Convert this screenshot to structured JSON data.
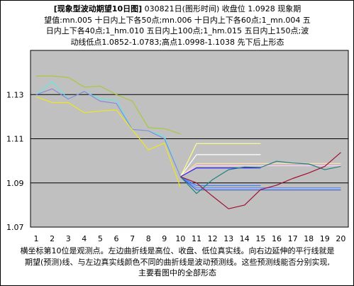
{
  "header": {
    "line1_title": "[现象型波动期望10日图]",
    "line1_rest": "030821日(图形时间) 收盘位 1.0928 现象期",
    "line2": "望值:mn.005 十日内上下各50点;mn.006 十日内上下各60点;1_mn.004 五",
    "line3": "日内上下各40点;1_hm.010 五日内上100点;1_hm.015 五日内上150点;波",
    "line4": "动线低点1.0852-1.0783;高点1.0998-1.1038 先下后上形态"
  },
  "footer": {
    "line1": "横坐标第10位是观测点。左边曲折线是高位、收盘、低位真实线。向右边延伸的平行线就是",
    "line2": "期望(预测)线、与左边真实线颜色不同的曲折线是波动预测线。这些预测线能否分别实现,",
    "line3": "主要看图中的全部形态"
  },
  "chart_data": {
    "type": "line",
    "title": "",
    "xlabel": "",
    "ylabel": "",
    "x": [
      1,
      2,
      3,
      4,
      5,
      6,
      7,
      8,
      9,
      10,
      11,
      12,
      13,
      14,
      15,
      16,
      17,
      18,
      19,
      20
    ],
    "xlim": [
      1,
      20
    ],
    "ylim": [
      1.07,
      1.15
    ],
    "yticks": [
      1.07,
      1.09,
      1.11,
      1.13
    ],
    "grid": "horizontal",
    "background": "#c0c0c0",
    "series": [
      {
        "role": "high",
        "color": "#a8c83c",
        "x": [
          1,
          2,
          3,
          4,
          5,
          6,
          7,
          8,
          9,
          10
        ],
        "y": [
          1.1384,
          1.1384,
          1.1378,
          1.1334,
          1.1338,
          1.13,
          1.127,
          1.115,
          1.1146,
          1.1122
        ]
      },
      {
        "role": "close",
        "color": "#60e8e8",
        "x": [
          1,
          2,
          3,
          4,
          5,
          6,
          7,
          8,
          9,
          10
        ],
        "y": [
          1.13,
          1.1358,
          1.128,
          1.1314,
          1.128,
          1.1276,
          1.1142,
          1.1136,
          1.111,
          1.0928
        ]
      },
      {
        "role": "close-overlay",
        "color": "#8a8ad8",
        "x": [
          1,
          2,
          3,
          4,
          5,
          6,
          7,
          8,
          9,
          10
        ],
        "y": [
          1.13,
          1.1326,
          1.128,
          1.1314,
          1.127,
          1.126,
          1.1142,
          1.1136,
          1.11,
          1.0928
        ]
      },
      {
        "role": "low",
        "color": "#ece81c",
        "x": [
          1,
          2,
          3,
          4,
          5,
          6,
          7,
          8,
          9,
          10
        ],
        "y": [
          1.129,
          1.1264,
          1.1264,
          1.1218,
          1.1226,
          1.123,
          1.114,
          1.105,
          1.108,
          1.088
        ]
      },
      {
        "role": "hm.015",
        "color": "#ffff88",
        "x": [
          10,
          11,
          15
        ],
        "y": [
          1.0928,
          1.1078,
          1.1078
        ]
      },
      {
        "role": "hm.010",
        "color": "#ffffff",
        "x": [
          10,
          11,
          15
        ],
        "y": [
          1.0928,
          1.1028,
          1.1028
        ]
      },
      {
        "role": "mn.005 upper",
        "color": "#ffccff",
        "x": [
          10,
          11,
          20
        ],
        "y": [
          1.0928,
          1.0978,
          1.0978
        ]
      },
      {
        "role": "mn.006 upper",
        "color": "#ffe0a0",
        "x": [
          10,
          11,
          20
        ],
        "y": [
          1.0928,
          1.0988,
          1.0988
        ]
      },
      {
        "role": "1_mn.004 upper",
        "color": "#2020e8",
        "x": [
          10,
          11,
          15
        ],
        "y": [
          1.0928,
          1.0968,
          1.0968
        ]
      },
      {
        "role": "1_mn.004 lower",
        "color": "#4080ff",
        "x": [
          10,
          11,
          15
        ],
        "y": [
          1.0928,
          1.0888,
          1.0888
        ]
      },
      {
        "role": "mn.005 lower",
        "color": "#6090ff",
        "x": [
          10,
          11,
          20
        ],
        "y": [
          1.0928,
          1.0878,
          1.0878
        ]
      },
      {
        "role": "mn.006 lower",
        "color": "#3060e0",
        "x": [
          10,
          11,
          20
        ],
        "y": [
          1.0928,
          1.0868,
          1.0868
        ]
      },
      {
        "role": "wave forecast A",
        "color": "#208080",
        "x": [
          10,
          11,
          12,
          13,
          14,
          15,
          16,
          17,
          18,
          19,
          20
        ],
        "y": [
          1.0928,
          1.0852,
          1.0915,
          1.096,
          1.0972,
          1.097,
          1.0998,
          1.099,
          1.0986,
          1.096,
          1.0975
        ]
      },
      {
        "role": "wave forecast B",
        "color": "#a01030",
        "x": [
          10,
          11,
          12,
          13,
          14,
          15,
          16,
          17,
          18,
          19,
          20
        ],
        "y": [
          1.0928,
          1.09,
          1.084,
          1.0783,
          1.08,
          1.087,
          1.089,
          1.092,
          1.0945,
          1.0975,
          1.1038
        ]
      }
    ]
  }
}
